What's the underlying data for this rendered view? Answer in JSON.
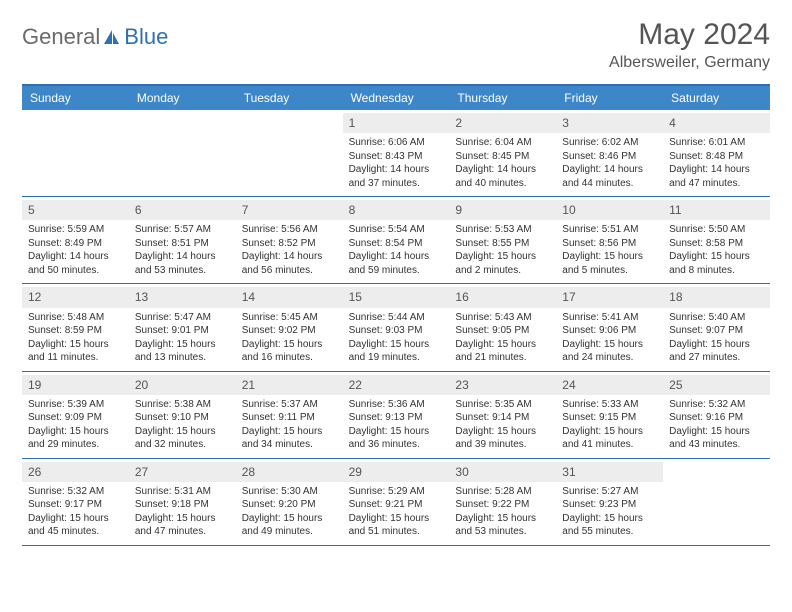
{
  "logo": {
    "textA": "General",
    "textB": "Blue"
  },
  "title": "May 2024",
  "location": "Albersweiler, Germany",
  "colors": {
    "headerBg": "#3d87c9",
    "accent": "#2f6fb3",
    "dayNumBg": "#ededed",
    "text": "#333333",
    "titleText": "#555555",
    "logoGray": "#6b6b6b"
  },
  "dayNames": [
    "Sunday",
    "Monday",
    "Tuesday",
    "Wednesday",
    "Thursday",
    "Friday",
    "Saturday"
  ],
  "weeks": [
    [
      {
        "n": "",
        "sunrise": "",
        "sunset": "",
        "daylight": ""
      },
      {
        "n": "",
        "sunrise": "",
        "sunset": "",
        "daylight": ""
      },
      {
        "n": "",
        "sunrise": "",
        "sunset": "",
        "daylight": ""
      },
      {
        "n": "1",
        "sunrise": "Sunrise: 6:06 AM",
        "sunset": "Sunset: 8:43 PM",
        "daylight": "Daylight: 14 hours and 37 minutes."
      },
      {
        "n": "2",
        "sunrise": "Sunrise: 6:04 AM",
        "sunset": "Sunset: 8:45 PM",
        "daylight": "Daylight: 14 hours and 40 minutes."
      },
      {
        "n": "3",
        "sunrise": "Sunrise: 6:02 AM",
        "sunset": "Sunset: 8:46 PM",
        "daylight": "Daylight: 14 hours and 44 minutes."
      },
      {
        "n": "4",
        "sunrise": "Sunrise: 6:01 AM",
        "sunset": "Sunset: 8:48 PM",
        "daylight": "Daylight: 14 hours and 47 minutes."
      }
    ],
    [
      {
        "n": "5",
        "sunrise": "Sunrise: 5:59 AM",
        "sunset": "Sunset: 8:49 PM",
        "daylight": "Daylight: 14 hours and 50 minutes."
      },
      {
        "n": "6",
        "sunrise": "Sunrise: 5:57 AM",
        "sunset": "Sunset: 8:51 PM",
        "daylight": "Daylight: 14 hours and 53 minutes."
      },
      {
        "n": "7",
        "sunrise": "Sunrise: 5:56 AM",
        "sunset": "Sunset: 8:52 PM",
        "daylight": "Daylight: 14 hours and 56 minutes."
      },
      {
        "n": "8",
        "sunrise": "Sunrise: 5:54 AM",
        "sunset": "Sunset: 8:54 PM",
        "daylight": "Daylight: 14 hours and 59 minutes."
      },
      {
        "n": "9",
        "sunrise": "Sunrise: 5:53 AM",
        "sunset": "Sunset: 8:55 PM",
        "daylight": "Daylight: 15 hours and 2 minutes."
      },
      {
        "n": "10",
        "sunrise": "Sunrise: 5:51 AM",
        "sunset": "Sunset: 8:56 PM",
        "daylight": "Daylight: 15 hours and 5 minutes."
      },
      {
        "n": "11",
        "sunrise": "Sunrise: 5:50 AM",
        "sunset": "Sunset: 8:58 PM",
        "daylight": "Daylight: 15 hours and 8 minutes."
      }
    ],
    [
      {
        "n": "12",
        "sunrise": "Sunrise: 5:48 AM",
        "sunset": "Sunset: 8:59 PM",
        "daylight": "Daylight: 15 hours and 11 minutes."
      },
      {
        "n": "13",
        "sunrise": "Sunrise: 5:47 AM",
        "sunset": "Sunset: 9:01 PM",
        "daylight": "Daylight: 15 hours and 13 minutes."
      },
      {
        "n": "14",
        "sunrise": "Sunrise: 5:45 AM",
        "sunset": "Sunset: 9:02 PM",
        "daylight": "Daylight: 15 hours and 16 minutes."
      },
      {
        "n": "15",
        "sunrise": "Sunrise: 5:44 AM",
        "sunset": "Sunset: 9:03 PM",
        "daylight": "Daylight: 15 hours and 19 minutes."
      },
      {
        "n": "16",
        "sunrise": "Sunrise: 5:43 AM",
        "sunset": "Sunset: 9:05 PM",
        "daylight": "Daylight: 15 hours and 21 minutes."
      },
      {
        "n": "17",
        "sunrise": "Sunrise: 5:41 AM",
        "sunset": "Sunset: 9:06 PM",
        "daylight": "Daylight: 15 hours and 24 minutes."
      },
      {
        "n": "18",
        "sunrise": "Sunrise: 5:40 AM",
        "sunset": "Sunset: 9:07 PM",
        "daylight": "Daylight: 15 hours and 27 minutes."
      }
    ],
    [
      {
        "n": "19",
        "sunrise": "Sunrise: 5:39 AM",
        "sunset": "Sunset: 9:09 PM",
        "daylight": "Daylight: 15 hours and 29 minutes."
      },
      {
        "n": "20",
        "sunrise": "Sunrise: 5:38 AM",
        "sunset": "Sunset: 9:10 PM",
        "daylight": "Daylight: 15 hours and 32 minutes."
      },
      {
        "n": "21",
        "sunrise": "Sunrise: 5:37 AM",
        "sunset": "Sunset: 9:11 PM",
        "daylight": "Daylight: 15 hours and 34 minutes."
      },
      {
        "n": "22",
        "sunrise": "Sunrise: 5:36 AM",
        "sunset": "Sunset: 9:13 PM",
        "daylight": "Daylight: 15 hours and 36 minutes."
      },
      {
        "n": "23",
        "sunrise": "Sunrise: 5:35 AM",
        "sunset": "Sunset: 9:14 PM",
        "daylight": "Daylight: 15 hours and 39 minutes."
      },
      {
        "n": "24",
        "sunrise": "Sunrise: 5:33 AM",
        "sunset": "Sunset: 9:15 PM",
        "daylight": "Daylight: 15 hours and 41 minutes."
      },
      {
        "n": "25",
        "sunrise": "Sunrise: 5:32 AM",
        "sunset": "Sunset: 9:16 PM",
        "daylight": "Daylight: 15 hours and 43 minutes."
      }
    ],
    [
      {
        "n": "26",
        "sunrise": "Sunrise: 5:32 AM",
        "sunset": "Sunset: 9:17 PM",
        "daylight": "Daylight: 15 hours and 45 minutes."
      },
      {
        "n": "27",
        "sunrise": "Sunrise: 5:31 AM",
        "sunset": "Sunset: 9:18 PM",
        "daylight": "Daylight: 15 hours and 47 minutes."
      },
      {
        "n": "28",
        "sunrise": "Sunrise: 5:30 AM",
        "sunset": "Sunset: 9:20 PM",
        "daylight": "Daylight: 15 hours and 49 minutes."
      },
      {
        "n": "29",
        "sunrise": "Sunrise: 5:29 AM",
        "sunset": "Sunset: 9:21 PM",
        "daylight": "Daylight: 15 hours and 51 minutes."
      },
      {
        "n": "30",
        "sunrise": "Sunrise: 5:28 AM",
        "sunset": "Sunset: 9:22 PM",
        "daylight": "Daylight: 15 hours and 53 minutes."
      },
      {
        "n": "31",
        "sunrise": "Sunrise: 5:27 AM",
        "sunset": "Sunset: 9:23 PM",
        "daylight": "Daylight: 15 hours and 55 minutes."
      },
      {
        "n": "",
        "sunrise": "",
        "sunset": "",
        "daylight": ""
      }
    ]
  ]
}
